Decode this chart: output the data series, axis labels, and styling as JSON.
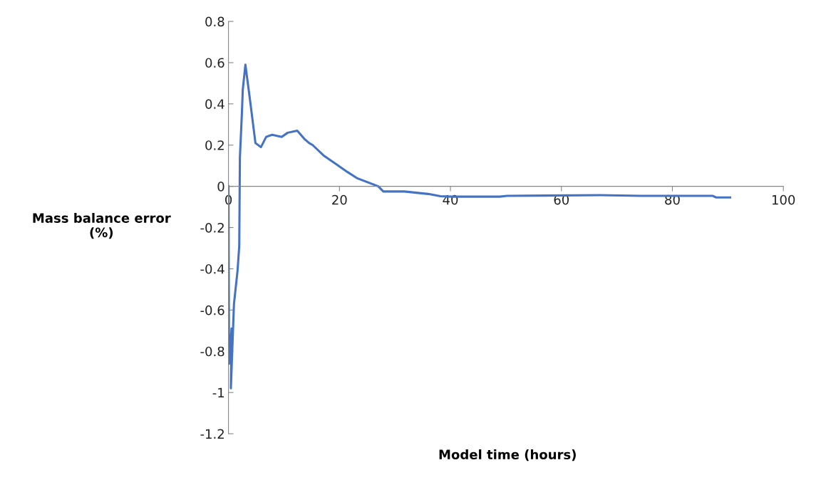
{
  "chart_data": {
    "type": "line",
    "xlabel": "Model time (hours)",
    "ylabel": "Mass balance error\n(%)",
    "xlim": [
      0,
      100
    ],
    "xticks": [
      0,
      20,
      40,
      60,
      80,
      100
    ],
    "ylim": [
      -1.2,
      0.8
    ],
    "yticks": [
      -1.2,
      -1,
      -0.8,
      -0.6,
      -0.4,
      -0.2,
      0,
      0.2,
      0.4,
      0.6,
      0.8
    ],
    "grid": false,
    "marker": "none",
    "line_style": "solid",
    "series": [
      {
        "color": "#4472c4",
        "x": [
          0,
          0.1,
          0.56,
          0.43,
          0.99,
          1.63,
          1.94,
          2.06,
          2.41,
          2.58,
          3.05,
          3.78,
          4.86,
          5.85,
          6.8,
          7.87,
          9.59,
          10.67,
          12.39,
          13.68,
          14.54,
          15.18,
          17.12,
          19.27,
          21.42,
          23.14,
          27.0,
          27.9,
          31.7,
          36.0,
          38.2,
          40.3,
          48.9,
          50.2,
          67.0,
          74.3,
          87.2,
          87.9,
          90.4
        ],
        "values": [
          0,
          -0.86,
          -0.69,
          -0.98,
          -0.57,
          -0.41,
          -0.29,
          0.14,
          0.35,
          0.47,
          0.59,
          0.44,
          0.21,
          0.19,
          0.24,
          0.25,
          0.24,
          0.26,
          0.27,
          0.23,
          0.21,
          0.2,
          0.15,
          0.11,
          0.07,
          0.04,
          0,
          -0.025,
          -0.025,
          -0.037,
          -0.048,
          -0.05,
          -0.05,
          -0.046,
          -0.043,
          -0.046,
          -0.046,
          -0.054,
          -0.054
        ]
      }
    ]
  }
}
